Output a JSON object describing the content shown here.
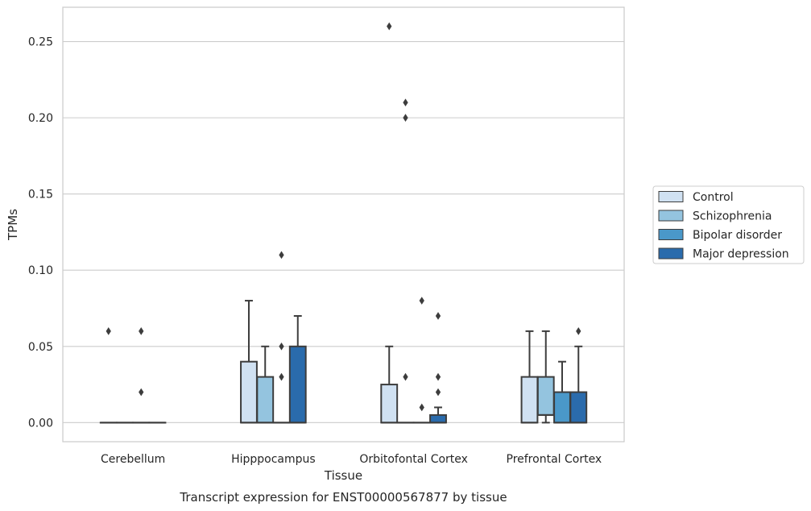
{
  "caption": "Transcript expression for ENST00000567877 by tissue",
  "chart_data": {
    "type": "box",
    "xlabel": "Tissue",
    "ylabel": "TPMs",
    "ylim": [
      -0.0125,
      0.2725
    ],
    "yticks": [
      "0.00",
      "0.05",
      "0.10",
      "0.15",
      "0.20",
      "0.25"
    ],
    "ytick_values": [
      0.0,
      0.05,
      0.1,
      0.15,
      0.2,
      0.25
    ],
    "grid": "horizontal",
    "legend_position": "right",
    "categories": [
      "Cerebellum",
      "Hipppocampus",
      "Orbitofontal Cortex",
      "Prefrontal Cortex"
    ],
    "series": [
      {
        "name": "Control",
        "color": "#d0e1f2",
        "boxes": [
          {
            "q1": 0.0,
            "median": 0.0,
            "q3": 0.0,
            "whisker_low": 0.0,
            "whisker_high": 0.0,
            "outliers": [
              0.06
            ]
          },
          {
            "q1": 0.0,
            "median": 0.0,
            "q3": 0.04,
            "whisker_low": 0.0,
            "whisker_high": 0.08,
            "outliers": []
          },
          {
            "q1": 0.0,
            "median": 0.0,
            "q3": 0.025,
            "whisker_low": 0.0,
            "whisker_high": 0.05,
            "outliers": [
              0.26
            ]
          },
          {
            "q1": 0.0,
            "median": 0.0,
            "q3": 0.03,
            "whisker_low": 0.0,
            "whisker_high": 0.06,
            "outliers": []
          }
        ]
      },
      {
        "name": "Schizophrenia",
        "color": "#94c4df",
        "boxes": [
          {
            "q1": 0.0,
            "median": 0.0,
            "q3": 0.0,
            "whisker_low": 0.0,
            "whisker_high": 0.0,
            "outliers": []
          },
          {
            "q1": 0.0,
            "median": 0.0,
            "q3": 0.03,
            "whisker_low": 0.0,
            "whisker_high": 0.05,
            "outliers": []
          },
          {
            "q1": 0.0,
            "median": 0.0,
            "q3": 0.0,
            "whisker_low": 0.0,
            "whisker_high": 0.0,
            "outliers": [
              0.03,
              0.2,
              0.21
            ]
          },
          {
            "q1": 0.005,
            "median": 0.005,
            "q3": 0.03,
            "whisker_low": 0.0,
            "whisker_high": 0.06,
            "outliers": []
          }
        ]
      },
      {
        "name": "Bipolar disorder",
        "color": "#4a98c9",
        "boxes": [
          {
            "q1": 0.0,
            "median": 0.0,
            "q3": 0.0,
            "whisker_low": 0.0,
            "whisker_high": 0.0,
            "outliers": [
              0.02,
              0.06
            ]
          },
          {
            "q1": 0.0,
            "median": 0.0,
            "q3": 0.0,
            "whisker_low": 0.0,
            "whisker_high": 0.0,
            "outliers": [
              0.03,
              0.05,
              0.11
            ]
          },
          {
            "q1": 0.0,
            "median": 0.0,
            "q3": 0.0,
            "whisker_low": 0.0,
            "whisker_high": 0.0,
            "outliers": [
              0.01,
              0.08
            ]
          },
          {
            "q1": 0.0,
            "median": 0.0,
            "q3": 0.02,
            "whisker_low": 0.0,
            "whisker_high": 0.04,
            "outliers": []
          }
        ]
      },
      {
        "name": "Major depression",
        "color": "#2a6bac",
        "boxes": [
          {
            "q1": 0.0,
            "median": 0.0,
            "q3": 0.0,
            "whisker_low": 0.0,
            "whisker_high": 0.0,
            "outliers": []
          },
          {
            "q1": 0.0,
            "median": 0.0,
            "q3": 0.05,
            "whisker_low": 0.0,
            "whisker_high": 0.07,
            "outliers": []
          },
          {
            "q1": 0.0,
            "median": 0.0,
            "q3": 0.005,
            "whisker_low": 0.0,
            "whisker_high": 0.01,
            "outliers": [
              0.02,
              0.03,
              0.07
            ]
          },
          {
            "q1": 0.0,
            "median": 0.0,
            "q3": 0.02,
            "whisker_low": 0.0,
            "whisker_high": 0.05,
            "outliers": [
              0.06
            ]
          }
        ]
      }
    ]
  }
}
